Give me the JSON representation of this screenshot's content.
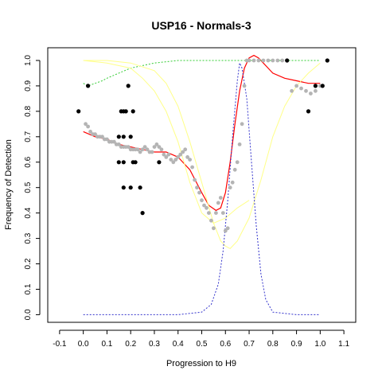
{
  "chart_data": {
    "type": "scatter",
    "title": "USP16 - Normals-3",
    "xlabel": "Progression to H9",
    "ylabel": "Frequency of Detection",
    "xlim": [
      -0.15,
      1.15
    ],
    "ylim": [
      -0.03,
      1.05
    ],
    "x_ticks": [
      "-0.1",
      "0.0",
      "0.1",
      "0.2",
      "0.3",
      "0.4",
      "0.5",
      "0.6",
      "0.7",
      "0.8",
      "0.9",
      "1.0",
      "1.1"
    ],
    "y_ticks": [
      "0.0",
      "0.1",
      "0.2",
      "0.3",
      "0.4",
      "0.5",
      "0.6",
      "0.7",
      "0.8",
      "0.9",
      "1.0"
    ],
    "grid": false,
    "colors": {
      "black_points": "#000000",
      "grey_points": "#b4b4b4",
      "red_curve": "#ff0000",
      "green_curve": "#33cc33",
      "yellow_curve": "#ffff88",
      "blue_curve": "#3333cc"
    },
    "series": [
      {
        "style": "black_points",
        "x": [
          -0.02,
          0.02,
          0.15,
          0.16,
          0.17,
          0.17,
          0.18,
          0.19,
          0.2,
          0.21,
          0.15,
          0.17,
          0.21,
          0.22,
          0.17,
          0.2,
          0.24,
          0.25,
          0.32,
          0.86,
          0.95,
          0.98,
          1.01,
          1.03
        ],
        "y": [
          0.8,
          0.9,
          0.7,
          0.8,
          0.8,
          0.7,
          0.8,
          0.9,
          0.7,
          0.8,
          0.6,
          0.6,
          0.6,
          0.6,
          0.5,
          0.5,
          0.5,
          0.4,
          0.6,
          1.0,
          0.8,
          0.9,
          0.9,
          1.0
        ]
      },
      {
        "style": "grey_points",
        "x": [
          0.01,
          0.02,
          0.03,
          0.04,
          0.05,
          0.06,
          0.07,
          0.08,
          0.09,
          0.1,
          0.11,
          0.12,
          0.13,
          0.14,
          0.15,
          0.16,
          0.17,
          0.18,
          0.19,
          0.2,
          0.21,
          0.22,
          0.23,
          0.24,
          0.25,
          0.26,
          0.27,
          0.28,
          0.29,
          0.3,
          0.31,
          0.32,
          0.33,
          0.34,
          0.35,
          0.36,
          0.37,
          0.38,
          0.39,
          0.4,
          0.41,
          0.42,
          0.43,
          0.44,
          0.45,
          0.46,
          0.47,
          0.48,
          0.49,
          0.5,
          0.51,
          0.52,
          0.53,
          0.54,
          0.55,
          0.56,
          0.57,
          0.58,
          0.59,
          0.6,
          0.61,
          0.62,
          0.63,
          0.64,
          0.65,
          0.66,
          0.67,
          0.68,
          0.69,
          0.7,
          0.72,
          0.74,
          0.76,
          0.78,
          0.8,
          0.82,
          0.84,
          0.86,
          0.88,
          0.9,
          0.92,
          0.94,
          0.96,
          0.98,
          1.0
        ],
        "y": [
          0.75,
          0.74,
          0.72,
          0.71,
          0.71,
          0.7,
          0.7,
          0.7,
          0.69,
          0.69,
          0.68,
          0.68,
          0.68,
          0.67,
          0.67,
          0.66,
          0.66,
          0.66,
          0.66,
          0.65,
          0.65,
          0.65,
          0.65,
          0.64,
          0.65,
          0.66,
          0.65,
          0.64,
          0.64,
          0.66,
          0.67,
          0.66,
          0.65,
          0.63,
          0.62,
          0.63,
          0.61,
          0.6,
          0.61,
          0.62,
          0.63,
          0.64,
          0.65,
          0.62,
          0.61,
          0.58,
          0.53,
          0.5,
          0.48,
          0.45,
          0.43,
          0.42,
          0.4,
          0.37,
          0.34,
          0.4,
          0.44,
          0.46,
          0.4,
          0.33,
          0.34,
          0.5,
          0.52,
          0.57,
          0.6,
          0.67,
          0.75,
          0.9,
          1.0,
          1.0,
          1.0,
          1.0,
          1.0,
          1.0,
          1.0,
          1.0,
          1.0,
          1.0,
          0.88,
          0.9,
          0.89,
          0.88,
          0.87,
          0.88,
          0.9
        ]
      },
      {
        "style": "red_curve",
        "x": [
          0.0,
          0.05,
          0.1,
          0.15,
          0.2,
          0.25,
          0.3,
          0.35,
          0.4,
          0.45,
          0.5,
          0.53,
          0.56,
          0.58,
          0.6,
          0.62,
          0.64,
          0.66,
          0.68,
          0.7,
          0.72,
          0.74,
          0.76,
          0.78,
          0.8,
          0.85,
          0.9,
          0.95,
          1.0
        ],
        "y": [
          0.72,
          0.7,
          0.69,
          0.67,
          0.66,
          0.65,
          0.64,
          0.64,
          0.62,
          0.57,
          0.48,
          0.43,
          0.41,
          0.42,
          0.48,
          0.6,
          0.75,
          0.88,
          0.97,
          1.01,
          1.02,
          1.01,
          0.99,
          0.97,
          0.95,
          0.93,
          0.92,
          0.91,
          0.91
        ]
      },
      {
        "style": "green_curve",
        "x": [
          0.0,
          0.02,
          0.05,
          0.08,
          0.1,
          0.15,
          0.2,
          0.25,
          0.3,
          0.35,
          0.4,
          0.45,
          0.5,
          0.55,
          0.6,
          0.65,
          0.7,
          0.8,
          0.9,
          1.0
        ],
        "y": [
          0.91,
          0.9,
          0.91,
          0.92,
          0.93,
          0.95,
          0.97,
          0.98,
          0.99,
          0.995,
          1.0,
          1.0,
          1.0,
          1.0,
          1.0,
          1.0,
          1.0,
          1.0,
          1.0,
          1.0
        ],
        "dashed": true
      },
      {
        "style": "yellow_curve",
        "x": [
          0.0,
          0.1,
          0.2,
          0.3,
          0.35,
          0.4,
          0.45,
          0.5,
          0.55,
          0.58,
          0.6,
          0.62,
          0.65,
          0.7,
          0.75,
          0.8,
          0.85,
          0.9,
          0.95,
          1.0
        ],
        "y": [
          1.0,
          1.0,
          0.99,
          0.96,
          0.91,
          0.82,
          0.68,
          0.52,
          0.36,
          0.29,
          0.27,
          0.26,
          0.29,
          0.38,
          0.53,
          0.7,
          0.82,
          0.9,
          0.95,
          0.99
        ]
      },
      {
        "style": "yellow_curve",
        "x": [
          0.0,
          0.1,
          0.2,
          0.25,
          0.3,
          0.35,
          0.4,
          0.45,
          0.5,
          0.55,
          0.6,
          0.65,
          0.7
        ],
        "y": [
          1.0,
          0.99,
          0.97,
          0.93,
          0.88,
          0.8,
          0.68,
          0.52,
          0.4,
          0.36,
          0.38,
          0.42,
          0.45
        ]
      },
      {
        "style": "blue_curve",
        "x": [
          0.0,
          0.4,
          0.5,
          0.54,
          0.57,
          0.59,
          0.61,
          0.63,
          0.65,
          0.66,
          0.67,
          0.69,
          0.71,
          0.73,
          0.75,
          0.77,
          0.8,
          0.9,
          1.0
        ],
        "y": [
          0.0,
          0.0,
          0.01,
          0.04,
          0.12,
          0.25,
          0.45,
          0.7,
          0.92,
          0.99,
          0.97,
          0.85,
          0.6,
          0.35,
          0.16,
          0.06,
          0.01,
          0.0,
          0.0
        ],
        "dashed": true
      }
    ]
  }
}
